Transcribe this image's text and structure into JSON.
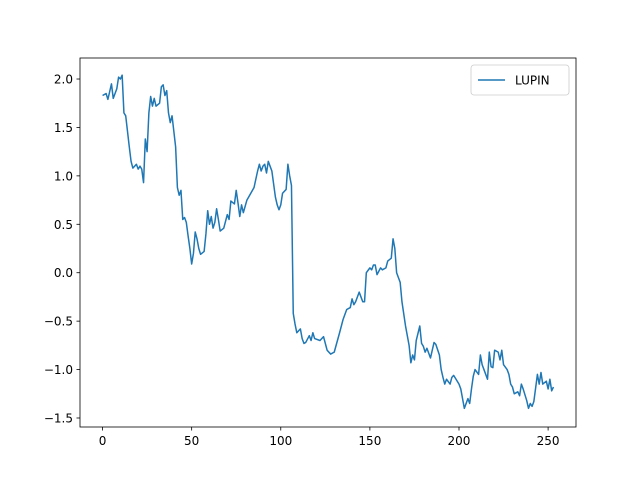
{
  "chart_data": {
    "type": "line",
    "x": [
      0,
      2,
      3,
      5,
      6,
      8,
      9,
      10,
      11,
      12,
      13,
      15,
      16,
      17,
      19,
      20,
      21,
      22,
      23,
      24,
      25,
      26,
      27,
      28,
      29,
      30,
      32,
      33,
      34,
      35,
      36,
      37,
      38,
      39,
      41,
      42,
      43,
      44,
      45,
      46,
      47,
      48,
      49,
      50,
      51,
      52,
      53,
      54,
      55,
      57,
      58,
      59,
      60,
      61,
      62,
      63,
      64,
      65,
      66,
      68,
      70,
      71,
      72,
      74,
      75,
      76,
      77,
      78,
      79,
      81,
      85,
      87,
      88,
      89,
      90,
      91,
      92,
      93,
      94,
      95,
      97,
      98,
      99,
      100,
      101,
      103,
      104,
      105,
      106,
      107,
      108,
      109,
      111,
      112,
      113,
      114,
      116,
      117,
      118,
      119,
      122,
      124,
      126,
      128,
      130,
      133,
      135,
      137,
      139,
      140,
      141,
      142,
      144,
      145,
      146,
      147,
      148,
      150,
      151,
      152,
      153,
      154,
      156,
      157,
      159,
      160,
      162,
      163,
      164,
      165,
      167,
      168,
      170,
      172,
      173,
      174,
      175,
      176,
      178,
      179,
      180,
      181,
      182,
      184,
      185,
      186,
      187,
      189,
      190,
      191,
      192,
      193,
      195,
      196,
      197,
      198,
      200,
      201,
      202,
      203,
      205,
      206,
      207,
      208,
      209,
      211,
      212,
      213,
      214,
      216,
      217,
      218,
      219,
      220,
      222,
      223,
      224,
      225,
      227,
      228,
      229,
      230,
      231,
      233,
      234,
      235,
      236,
      238,
      239,
      240,
      241,
      242,
      244,
      245,
      246,
      247,
      249,
      250,
      251,
      252,
      253
    ],
    "series": [
      {
        "name": "LUPIN",
        "color": "#1f77b4",
        "values": [
          1.83,
          1.85,
          1.79,
          1.95,
          1.8,
          1.9,
          2.02,
          2.0,
          2.04,
          1.65,
          1.62,
          1.3,
          1.15,
          1.08,
          1.12,
          1.07,
          1.1,
          1.07,
          0.93,
          1.38,
          1.25,
          1.65,
          1.82,
          1.72,
          1.8,
          1.72,
          1.75,
          1.92,
          1.94,
          1.83,
          1.88,
          1.65,
          1.55,
          1.62,
          1.3,
          0.88,
          0.8,
          0.85,
          0.55,
          0.57,
          0.52,
          0.38,
          0.25,
          0.09,
          0.2,
          0.42,
          0.35,
          0.25,
          0.19,
          0.22,
          0.4,
          0.64,
          0.5,
          0.58,
          0.46,
          0.52,
          0.66,
          0.55,
          0.43,
          0.46,
          0.6,
          0.55,
          0.74,
          0.71,
          0.85,
          0.72,
          0.58,
          0.7,
          0.62,
          0.75,
          0.88,
          1.05,
          1.12,
          1.05,
          1.1,
          1.12,
          1.03,
          1.15,
          1.1,
          1.05,
          0.78,
          0.7,
          0.65,
          0.7,
          0.82,
          0.86,
          1.12,
          1.0,
          0.9,
          -0.42,
          -0.53,
          -0.62,
          -0.58,
          -0.68,
          -0.73,
          -0.72,
          -0.65,
          -0.7,
          -0.62,
          -0.68,
          -0.7,
          -0.66,
          -0.8,
          -0.84,
          -0.82,
          -0.62,
          -0.48,
          -0.38,
          -0.36,
          -0.27,
          -0.33,
          -0.3,
          -0.2,
          -0.25,
          -0.3,
          -0.3,
          0.0,
          0.05,
          0.03,
          0.08,
          0.08,
          -0.02,
          0.05,
          0.03,
          0.05,
          0.12,
          0.15,
          0.35,
          0.25,
          0.0,
          -0.1,
          -0.3,
          -0.55,
          -0.75,
          -0.93,
          -0.85,
          -0.9,
          -0.7,
          -0.55,
          -0.73,
          -0.76,
          -0.82,
          -0.78,
          -0.88,
          -0.8,
          -0.72,
          -0.74,
          -0.85,
          -1.0,
          -1.08,
          -1.15,
          -1.1,
          -1.15,
          -1.08,
          -1.06,
          -1.09,
          -1.15,
          -1.2,
          -1.3,
          -1.4,
          -1.3,
          -1.35,
          -1.2,
          -1.07,
          -1.0,
          -1.05,
          -0.85,
          -0.95,
          -1.0,
          -1.1,
          -0.82,
          -0.97,
          -0.98,
          -0.8,
          -0.82,
          -0.9,
          -0.8,
          -0.95,
          -1.0,
          -1.05,
          -1.15,
          -1.18,
          -1.25,
          -1.23,
          -1.27,
          -1.15,
          -1.2,
          -1.32,
          -1.4,
          -1.35,
          -1.38,
          -1.33,
          -1.05,
          -1.15,
          -1.03,
          -1.15,
          -1.12,
          -1.2,
          -1.1,
          -1.22,
          -1.18
        ]
      }
    ],
    "xlim": [
      -12.65,
      265.65
    ],
    "xticks": [
      0,
      50,
      100,
      150,
      200,
      250
    ],
    "ylim": [
      -1.593,
      2.217
    ],
    "yticks": [
      {
        "value": -1.5,
        "label": "−1.5"
      },
      {
        "value": -1.0,
        "label": "−1.0"
      },
      {
        "value": -0.5,
        "label": "−0.5"
      },
      {
        "value": 0,
        "label": "0.0"
      },
      {
        "value": 0.5,
        "label": "0.5"
      },
      {
        "value": 1.0,
        "label": "1.0"
      },
      {
        "value": 1.5,
        "label": "1.5"
      },
      {
        "value": 2.0,
        "label": "2.0"
      }
    ],
    "legend": "upper right"
  }
}
